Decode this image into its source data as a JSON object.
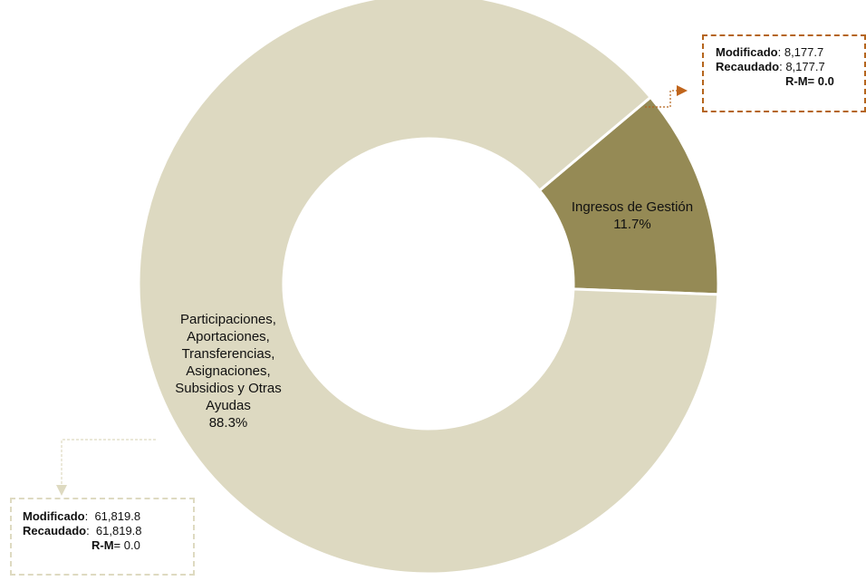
{
  "chart_data": {
    "type": "pie",
    "donut": true,
    "slices": [
      {
        "label_lines": [
          "Ingresos de Gestión"
        ],
        "percent_label": "11.7%",
        "value": 11.7,
        "color": "#958a55"
      },
      {
        "label_lines": [
          "Participaciones,",
          "Aportaciones,",
          "Transferencias,",
          "Asignaciones,",
          "Subsidios y Otras",
          "Ayudas"
        ],
        "percent_label": "88.3%",
        "value": 88.3,
        "color": "#ddd9c1"
      }
    ],
    "callouts": [
      {
        "modificado_label": "Modificado",
        "modificado_value": "8,177.7",
        "recaudado_label": "Recaudado",
        "recaudado_value": "8,177.7",
        "rm_label": "R-M=",
        "rm_value": "0.0",
        "border_color": "#b5651d"
      },
      {
        "modificado_label": "Modificado",
        "modificado_value": "61,819.8",
        "recaudado_label": "Recaudado",
        "recaudado_value": "61,819.8",
        "rm_label": "R-M",
        "rm_value": "= 0.0",
        "border_color": "#dedac1"
      }
    ]
  }
}
